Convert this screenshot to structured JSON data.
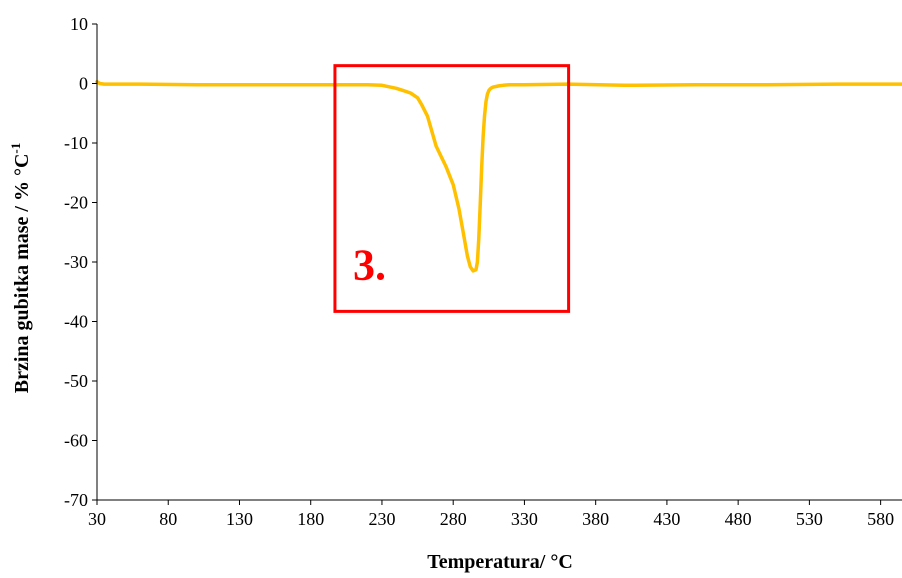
{
  "colors": {
    "series": "#FFC000",
    "annotation": "#FF0000",
    "axis": "#000000"
  },
  "chart_data": {
    "type": "line",
    "title": "",
    "xlabel": "Temperatura/ °C",
    "ylabel_main": "Brzina gubitka mase / % °C",
    "ylabel_sup": "-1",
    "xlim": [
      30,
      595
    ],
    "ylim": [
      -70,
      10
    ],
    "xticks": [
      30,
      80,
      130,
      180,
      230,
      280,
      330,
      380,
      430,
      480,
      530,
      580
    ],
    "yticks": [
      10,
      0,
      -10,
      -20,
      -30,
      -40,
      -50,
      -60,
      -70
    ],
    "grid": false,
    "legend": "none",
    "series": [
      {
        "x": [
          30,
          32,
          35,
          40,
          60,
          100,
          150,
          200,
          220,
          230,
          240,
          245,
          250,
          255,
          258,
          262,
          265,
          268,
          270,
          275,
          280,
          284,
          287,
          290,
          292,
          294,
          296,
          297,
          298,
          299,
          300,
          301,
          302,
          303,
          304,
          305,
          306,
          307,
          308,
          310,
          312,
          315,
          320,
          330,
          360,
          400,
          450,
          500,
          550,
          595
        ],
        "y": [
          0.3,
          0.0,
          -0.1,
          -0.1,
          -0.1,
          -0.2,
          -0.2,
          -0.2,
          -0.2,
          -0.3,
          -0.8,
          -1.2,
          -1.6,
          -2.4,
          -3.6,
          -5.5,
          -8.0,
          -10.5,
          -11.5,
          -14.0,
          -17.0,
          -21.0,
          -25.0,
          -29.0,
          -30.8,
          -31.5,
          -31.3,
          -30.0,
          -26.0,
          -20.0,
          -14.0,
          -9.0,
          -5.5,
          -3.0,
          -1.8,
          -1.2,
          -0.9,
          -0.7,
          -0.6,
          -0.5,
          -0.4,
          -0.3,
          -0.2,
          -0.2,
          -0.1,
          -0.3,
          -0.2,
          -0.2,
          -0.1,
          -0.1
        ]
      }
    ],
    "annotations": [
      {
        "label": "3.",
        "x0": 197,
        "x1": 361,
        "y0": 3,
        "y1": -38.3
      }
    ]
  }
}
